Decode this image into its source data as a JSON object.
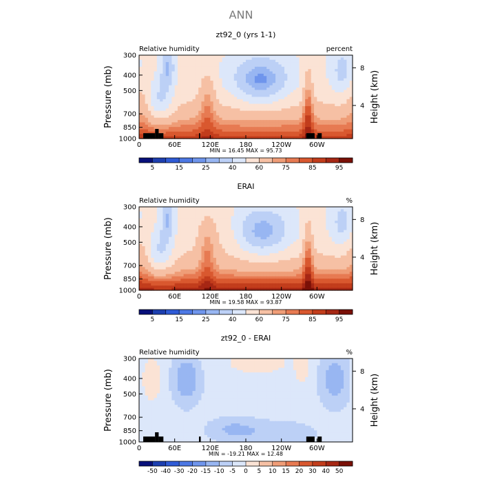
{
  "page_title": "ANN",
  "colors": {
    "text": "#000000",
    "title_gray": "#7a7a7a",
    "topography": "#000000"
  },
  "chart_data": [
    {
      "type": "heatmap",
      "title": "zt92_0 (yrs 1-1)",
      "left_label": "Relative humidity",
      "right_label": "percent",
      "ylabel": "Pressure (mb)",
      "ylabel_right": "Height (km)",
      "y_ticks": [
        300,
        400,
        500,
        700,
        850,
        1000
      ],
      "y_ticks_right": [
        4,
        8
      ],
      "ylim": [
        1000,
        300
      ],
      "y_scale": "log",
      "x_ticks": [
        "0",
        "60E",
        "120E",
        "180",
        "120W",
        "60W"
      ],
      "xlim": [
        0,
        360
      ],
      "stats": "MIN =   16.45   MAX =   95.73",
      "min": 16.45,
      "max": 95.73,
      "colorbar": {
        "levels": [
          5,
          10,
          15,
          20,
          25,
          30,
          40,
          50,
          60,
          70,
          75,
          80,
          85,
          90,
          95
        ],
        "labels": [
          "5",
          "15",
          "25",
          "40",
          "60",
          "75",
          "85",
          "95"
        ],
        "colors": [
          "#08107a",
          "#1d3fb0",
          "#2f5bd6",
          "#4d78e4",
          "#6f95ec",
          "#98b6f2",
          "#bcd0f6",
          "#dce7fa",
          "#fbe3d5",
          "#f6c0a4",
          "#ef9d77",
          "#e77a52",
          "#d9582f",
          "#c23d1c",
          "#a62714",
          "#7a1007"
        ]
      },
      "regimes": "model",
      "topography": true
    },
    {
      "type": "heatmap",
      "title": "ERAI",
      "left_label": "Relative humidity",
      "right_label": "%",
      "ylabel": "Pressure (mb)",
      "ylabel_right": "Height (km)",
      "y_ticks": [
        300,
        400,
        500,
        700,
        850,
        1000
      ],
      "y_ticks_right": [
        4,
        8
      ],
      "ylim": [
        1000,
        300
      ],
      "y_scale": "log",
      "x_ticks": [
        "0",
        "60E",
        "120E",
        "180",
        "120W",
        "60W"
      ],
      "xlim": [
        0,
        360
      ],
      "stats": "MIN =   19.58   MAX =   93.87",
      "min": 19.58,
      "max": 93.87,
      "colorbar": {
        "levels": [
          5,
          10,
          15,
          20,
          25,
          30,
          40,
          50,
          60,
          70,
          75,
          80,
          85,
          90,
          95
        ],
        "labels": [
          "5",
          "15",
          "25",
          "40",
          "60",
          "75",
          "85",
          "95"
        ],
        "colors": [
          "#08107a",
          "#1d3fb0",
          "#2f5bd6",
          "#4d78e4",
          "#6f95ec",
          "#98b6f2",
          "#bcd0f6",
          "#dce7fa",
          "#fbe3d5",
          "#f6c0a4",
          "#ef9d77",
          "#e77a52",
          "#d9582f",
          "#c23d1c",
          "#a62714",
          "#7a1007"
        ]
      },
      "regimes": "obs",
      "topography": false
    },
    {
      "type": "heatmap",
      "title": "zt92_0 - ERAI",
      "left_label": "Relative humidity",
      "right_label": "%",
      "ylabel": "Pressure (mb)",
      "ylabel_right": "Height (km)",
      "y_ticks": [
        300,
        400,
        500,
        700,
        850,
        1000
      ],
      "y_ticks_right": [
        4,
        8
      ],
      "ylim": [
        1000,
        300
      ],
      "y_scale": "log",
      "x_ticks": [
        "0",
        "60E",
        "120E",
        "180",
        "120W",
        "60W"
      ],
      "xlim": [
        0,
        360
      ],
      "stats": "MIN =  -19.21   MAX =   12.48",
      "min": -19.21,
      "max": 12.48,
      "colorbar": {
        "levels": [
          -50,
          -40,
          -30,
          -20,
          -15,
          -10,
          -5,
          0,
          5,
          10,
          15,
          20,
          30,
          40,
          50
        ],
        "labels": [
          "-50",
          "-40",
          "-30",
          "-20",
          "-15",
          "-10",
          "-5",
          "0",
          "5",
          "10",
          "15",
          "20",
          "30",
          "40",
          "50"
        ],
        "colors": [
          "#08107a",
          "#1d3fb0",
          "#2f5bd6",
          "#4d78e4",
          "#6f95ec",
          "#98b6f2",
          "#bcd0f6",
          "#dce7fa",
          "#fbe3d5",
          "#f6c0a4",
          "#ef9d77",
          "#e77a52",
          "#d9582f",
          "#c23d1c",
          "#a62714",
          "#7a1007"
        ]
      },
      "regimes": "diff",
      "topography": true
    }
  ]
}
